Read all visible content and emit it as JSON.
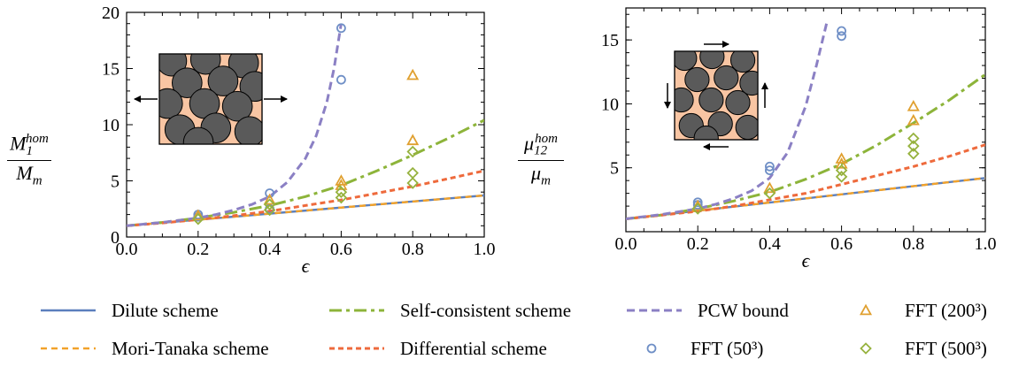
{
  "chart_data": [
    {
      "type": "line",
      "xlabel": "ϵ",
      "ylabel": {
        "num_base": "M",
        "num_sub": "1",
        "num_sup": "hom",
        "den_base": "M",
        "den_sub": "m"
      },
      "xlim": [
        0.0,
        1.0
      ],
      "ylim": [
        0,
        20
      ],
      "xticks": [
        "0.0",
        "0.2",
        "0.4",
        "0.6",
        "0.8",
        "1.0"
      ],
      "yticks": [
        "0",
        "5",
        "10",
        "15",
        "20"
      ],
      "inset": "tension",
      "series": [
        {
          "name": "Dilute scheme",
          "key": "dilute",
          "x": [
            0.0,
            1.0
          ],
          "y": [
            1.0,
            3.7
          ]
        },
        {
          "name": "Mori-Tanaka scheme",
          "key": "mt",
          "x": [
            0.0,
            1.0
          ],
          "y": [
            1.0,
            3.7
          ]
        },
        {
          "name": "Self-consistent scheme",
          "key": "sc",
          "x": [
            0.0,
            0.1,
            0.2,
            0.3,
            0.4,
            0.5,
            0.6,
            0.7,
            0.8,
            0.9,
            1.0
          ],
          "y": [
            1.0,
            1.3,
            1.7,
            2.2,
            2.8,
            3.6,
            4.6,
            5.9,
            7.3,
            8.8,
            10.4
          ]
        },
        {
          "name": "Differential scheme",
          "key": "diff",
          "x": [
            0.0,
            0.1,
            0.2,
            0.3,
            0.4,
            0.5,
            0.6,
            0.7,
            0.8,
            0.9,
            1.0
          ],
          "y": [
            1.0,
            1.25,
            1.55,
            1.9,
            2.3,
            2.8,
            3.3,
            3.9,
            4.5,
            5.2,
            5.9
          ]
        },
        {
          "name": "PCW bound",
          "key": "pcw",
          "x": [
            0.0,
            0.1,
            0.2,
            0.25,
            0.3,
            0.35,
            0.4,
            0.45,
            0.5,
            0.53,
            0.56,
            0.58,
            0.6
          ],
          "y": [
            1.0,
            1.3,
            1.7,
            2.0,
            2.4,
            2.9,
            3.6,
            4.9,
            7.0,
            9.0,
            12.0,
            15.0,
            19.0
          ]
        },
        {
          "name": "FFT (50³)",
          "key": "fft50",
          "x": [
            0.2,
            0.2,
            0.4,
            0.4,
            0.6,
            0.6
          ],
          "y": [
            1.8,
            2.0,
            2.5,
            3.9,
            14.0,
            18.6
          ]
        },
        {
          "name": "FFT (200³)",
          "key": "fft200",
          "x": [
            0.2,
            0.4,
            0.6,
            0.6,
            0.8,
            0.8
          ],
          "y": [
            1.9,
            3.3,
            4.6,
            5.0,
            8.6,
            14.4
          ]
        },
        {
          "name": "FFT (500³)",
          "key": "fft500",
          "x": [
            0.2,
            0.4,
            0.4,
            0.6,
            0.6,
            0.8,
            0.8,
            0.8
          ],
          "y": [
            1.6,
            2.4,
            2.9,
            3.5,
            4.0,
            4.8,
            5.7,
            7.6
          ]
        }
      ]
    },
    {
      "type": "line",
      "xlabel": "ϵ",
      "ylabel": {
        "num_base": "μ",
        "num_sub": "12",
        "num_sup": "hom",
        "den_base": "μ",
        "den_sub": "m"
      },
      "xlim": [
        0.0,
        1.0
      ],
      "ylim": [
        0,
        17.5
      ],
      "xticks": [
        "0.0",
        "0.2",
        "0.4",
        "0.6",
        "0.8",
        "1.0"
      ],
      "yticks": [
        "5",
        "10",
        "15"
      ],
      "inset": "shear",
      "series": [
        {
          "name": "Dilute scheme",
          "key": "dilute",
          "x": [
            0.0,
            1.0
          ],
          "y": [
            1.0,
            4.2
          ]
        },
        {
          "name": "Mori-Tanaka scheme",
          "key": "mt",
          "x": [
            0.0,
            1.0
          ],
          "y": [
            1.0,
            4.2
          ]
        },
        {
          "name": "Self-consistent scheme",
          "key": "sc",
          "x": [
            0.0,
            0.1,
            0.2,
            0.3,
            0.4,
            0.5,
            0.6,
            0.7,
            0.8,
            0.9,
            1.0
          ],
          "y": [
            1.0,
            1.3,
            1.8,
            2.4,
            3.1,
            4.1,
            5.3,
            6.8,
            8.5,
            10.3,
            12.3
          ]
        },
        {
          "name": "Differential scheme",
          "key": "diff",
          "x": [
            0.0,
            0.1,
            0.2,
            0.3,
            0.4,
            0.5,
            0.6,
            0.7,
            0.8,
            0.9,
            1.0
          ],
          "y": [
            1.0,
            1.3,
            1.6,
            2.0,
            2.5,
            3.0,
            3.7,
            4.4,
            5.1,
            5.9,
            6.8
          ]
        },
        {
          "name": "PCW bound",
          "key": "pcw",
          "x": [
            0.0,
            0.1,
            0.2,
            0.25,
            0.3,
            0.35,
            0.4,
            0.45,
            0.5,
            0.53,
            0.56
          ],
          "y": [
            1.0,
            1.35,
            1.8,
            2.15,
            2.6,
            3.2,
            4.2,
            6.2,
            9.8,
            13.0,
            16.5
          ]
        },
        {
          "name": "FFT (50³)",
          "key": "fft50",
          "x": [
            0.2,
            0.2,
            0.4,
            0.4,
            0.6,
            0.6
          ],
          "y": [
            2.1,
            2.3,
            4.8,
            5.1,
            15.3,
            15.7
          ]
        },
        {
          "name": "FFT (200³)",
          "key": "fft200",
          "x": [
            0.2,
            0.4,
            0.6,
            0.6,
            0.8,
            0.8
          ],
          "y": [
            2.0,
            3.4,
            5.3,
            5.7,
            8.7,
            9.8
          ]
        },
        {
          "name": "FFT (500³)",
          "key": "fft500",
          "x": [
            0.2,
            0.4,
            0.6,
            0.6,
            0.8,
            0.8,
            0.8
          ],
          "y": [
            1.8,
            3.0,
            4.3,
            4.8,
            6.1,
            6.7,
            7.3
          ]
        }
      ]
    }
  ],
  "legend": [
    {
      "key": "dilute",
      "label": "Dilute scheme"
    },
    {
      "key": "mt",
      "label": "Mori-Tanaka scheme"
    },
    {
      "key": "sc",
      "label": "Self-consistent scheme"
    },
    {
      "key": "diff",
      "label": "Differential scheme"
    },
    {
      "key": "pcw",
      "label": "PCW bound"
    },
    {
      "key": "fft50",
      "label": "FFT (50³)"
    },
    {
      "key": "fft200",
      "label": "FFT (200³)"
    },
    {
      "key": "fft500",
      "label": "FFT (500³)"
    }
  ],
  "colors": {
    "dilute": "#5b7fbd",
    "mt": "#f2a22a",
    "sc": "#8db43a",
    "diff": "#ee6a3c",
    "pcw": "#8b80c4",
    "fft50": "#6f8fc6",
    "fft200": "#e0a030",
    "fft500": "#96b23e",
    "matrix": "#f8c5a3",
    "inclusion": "#5a5a5a"
  }
}
